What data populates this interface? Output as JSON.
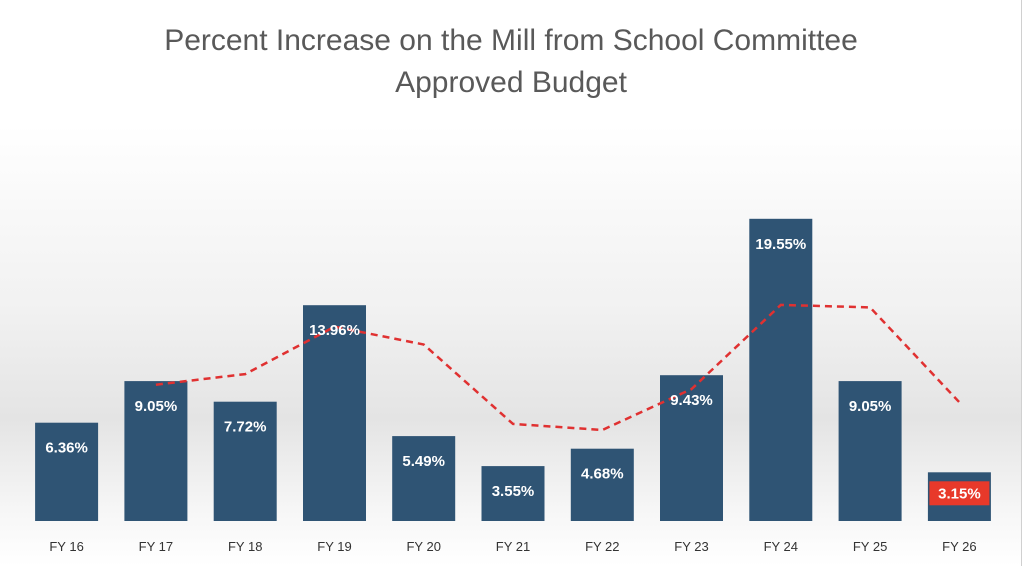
{
  "chart_data": {
    "type": "bar",
    "title_lines": [
      "Percent Increase on the Mill from School Committee",
      "Approved Budget"
    ],
    "categories": [
      "FY 16",
      "FY 17",
      "FY 18",
      "FY 19",
      "FY 20",
      "FY 21",
      "FY 22",
      "FY 23",
      "FY 24",
      "FY 25",
      "FY 26"
    ],
    "values": [
      6.36,
      9.05,
      7.72,
      13.96,
      5.49,
      3.55,
      4.68,
      9.43,
      19.55,
      9.05,
      3.15
    ],
    "data_labels": [
      "6.36%",
      "9.05%",
      "7.72%",
      "13.96%",
      "5.49%",
      "3.55%",
      "4.68%",
      "9.43%",
      "19.55%",
      "9.05%",
      "3.15%"
    ],
    "trendline": {
      "style": "dashed",
      "color": "#e03131",
      "start_index": 1,
      "values": [
        8.82,
        9.5,
        12.57,
        11.42,
        6.28,
        5.89,
        8.53,
        13.98,
        13.82,
        7.68
      ]
    },
    "ylim": [
      0,
      24
    ],
    "xlabel": "",
    "ylabel": "",
    "grid": false,
    "legend": "none",
    "colors": {
      "bar": "#2f5474",
      "highlight_label_bg": "#e8392a",
      "trendline": "#e03131",
      "title": "#595959"
    },
    "highlight_index": 10
  }
}
